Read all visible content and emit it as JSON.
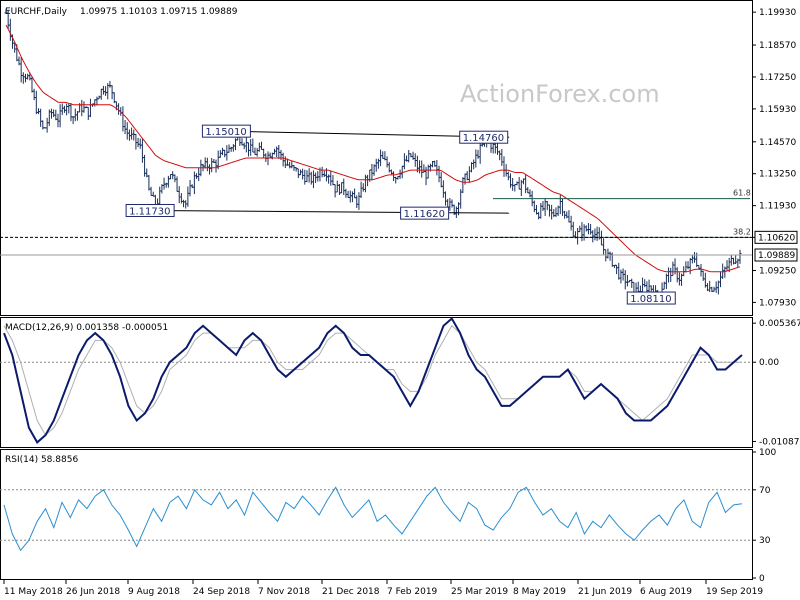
{
  "chart_data": [
    {
      "type": "ohlc",
      "header": "EURCHF,Daily",
      "ohlc_header": "1.09975 1.10103 1.09715 1.09889",
      "watermark": "ActionForex.com",
      "ylim": [
        1.0745,
        1.2035
      ],
      "ticks": [
        "1.19930",
        "1.18570",
        "1.17250",
        "1.15930",
        "1.14570",
        "1.13250",
        "1.11930",
        "1.10620",
        "1.09250",
        "1.07930"
      ],
      "x_ticks": [
        "11 May 2018",
        "26 Jun 2018",
        "9 Aug 2018",
        "24 Sep 2018",
        "7 Nov 2018",
        "21 Dec 2018",
        "7 Feb 2019",
        "25 Mar 2019",
        "8 May 2019",
        "21 Jun 2019",
        "6 Aug 2019",
        "19 Sep 2019"
      ],
      "close_path": [
        1.199,
        1.185,
        1.175,
        1.172,
        1.16,
        1.15,
        1.158,
        1.155,
        1.162,
        1.156,
        1.16,
        1.158,
        1.164,
        1.168,
        1.168,
        1.159,
        1.15,
        1.147,
        1.143,
        1.126,
        1.119,
        1.128,
        1.133,
        1.125,
        1.12,
        1.13,
        1.135,
        1.136,
        1.137,
        1.141,
        1.143,
        1.148,
        1.145,
        1.141,
        1.142,
        1.14,
        1.144,
        1.138,
        1.135,
        1.133,
        1.131,
        1.13,
        1.134,
        1.133,
        1.126,
        1.127,
        1.123,
        1.121,
        1.13,
        1.134,
        1.139,
        1.136,
        1.131,
        1.136,
        1.14,
        1.135,
        1.132,
        1.136,
        1.13,
        1.12,
        1.117,
        1.129,
        1.134,
        1.141,
        1.146,
        1.144,
        1.14,
        1.131,
        1.126,
        1.13,
        1.122,
        1.116,
        1.119,
        1.115,
        1.121,
        1.113,
        1.107,
        1.109,
        1.11,
        1.106,
        1.1,
        1.096,
        1.09,
        1.088,
        1.084,
        1.085,
        1.086,
        1.081,
        1.089,
        1.093,
        1.089,
        1.094,
        1.098,
        1.089,
        1.085,
        1.087,
        1.093,
        1.097,
        1.09889
      ],
      "sma_path": [
        1.194,
        1.188,
        1.181,
        1.175,
        1.17,
        1.166,
        1.164,
        1.162,
        1.162,
        1.161,
        1.161,
        1.161,
        1.161,
        1.161,
        1.161,
        1.159,
        1.156,
        1.152,
        1.148,
        1.144,
        1.14,
        1.138,
        1.137,
        1.136,
        1.135,
        1.135,
        1.135,
        1.135,
        1.135,
        1.136,
        1.137,
        1.138,
        1.139,
        1.139,
        1.139,
        1.139,
        1.139,
        1.139,
        1.138,
        1.137,
        1.136,
        1.135,
        1.134,
        1.134,
        1.133,
        1.132,
        1.131,
        1.13,
        1.13,
        1.13,
        1.131,
        1.132,
        1.132,
        1.133,
        1.134,
        1.134,
        1.134,
        1.134,
        1.134,
        1.132,
        1.13,
        1.129,
        1.129,
        1.13,
        1.132,
        1.133,
        1.134,
        1.134,
        1.133,
        1.133,
        1.131,
        1.129,
        1.127,
        1.125,
        1.124,
        1.122,
        1.12,
        1.118,
        1.116,
        1.114,
        1.111,
        1.108,
        1.105,
        1.102,
        1.099,
        1.097,
        1.095,
        1.093,
        1.092,
        1.092,
        1.092,
        1.092,
        1.093,
        1.093,
        1.092,
        1.092,
        1.092,
        1.093,
        1.094
      ],
      "annotations": [
        {
          "label": "1.15010",
          "x": 0.3,
          "y": 1.1501
        },
        {
          "label": "1.14760",
          "x": 0.644,
          "y": 1.1476
        },
        {
          "label": "1.11730",
          "x": 0.198,
          "y": 1.1173
        },
        {
          "label": "1.11620",
          "x": 0.565,
          "y": 1.1162
        },
        {
          "label": "1.08110",
          "x": 0.868,
          "y": 1.0811
        }
      ],
      "trendlines": [
        {
          "from": [
            0.3,
            1.1501
          ],
          "to": [
            0.678,
            1.1476
          ]
        },
        {
          "from": [
            0.198,
            1.1173
          ],
          "to": [
            0.678,
            1.1162
          ]
        }
      ],
      "fib_levels": [
        {
          "label": "61.8",
          "y": 1.1222
        },
        {
          "label": "38.2",
          "y": 1.1062
        }
      ],
      "resistance_label": "1.10620",
      "last_price_label": "1.09889"
    },
    {
      "type": "line",
      "header": "MACD(12,26,9) 0.001358 -0.000051",
      "ylim": [
        -0.0115,
        0.0058
      ],
      "ticks": [
        {
          "label": "0.005367",
          "v": 0.005367
        },
        {
          "label": "0.00",
          "v": 0.0
        },
        {
          "label": "-0.010875",
          "v": -0.010875
        }
      ],
      "series": [
        {
          "values": [
            0.004,
            0.001,
            -0.004,
            -0.009,
            -0.011,
            -0.01,
            -0.008,
            -0.005,
            -0.002,
            0.001,
            0.003,
            0.004,
            0.003,
            0.001,
            -0.002,
            -0.006,
            -0.008,
            -0.007,
            -0.005,
            -0.002,
            0.0,
            0.001,
            0.002,
            0.004,
            0.005,
            0.004,
            0.003,
            0.002,
            0.001,
            0.003,
            0.004,
            0.003,
            0.001,
            -0.001,
            -0.002,
            -0.001,
            0.0,
            0.001,
            0.002,
            0.004,
            0.005,
            0.004,
            0.002,
            0.001,
            0.001,
            0.0,
            -0.001,
            -0.002,
            -0.004,
            -0.006,
            -0.004,
            -0.001,
            0.002,
            0.005,
            0.006,
            0.004,
            0.001,
            -0.001,
            -0.002,
            -0.004,
            -0.006,
            -0.006,
            -0.005,
            -0.004,
            -0.003,
            -0.002,
            -0.002,
            -0.002,
            -0.001,
            -0.003,
            -0.005,
            -0.004,
            -0.003,
            -0.004,
            -0.005,
            -0.007,
            -0.008,
            -0.008,
            -0.008,
            -0.007,
            -0.006,
            -0.004,
            -0.002,
            0.0,
            0.002,
            0.001,
            -0.001,
            -0.001,
            0.0,
            0.001
          ]
        },
        {
          "values": [
            0.005,
            0.003,
            0.0,
            -0.004,
            -0.008,
            -0.01,
            -0.009,
            -0.007,
            -0.004,
            -0.001,
            0.001,
            0.003,
            0.003,
            0.002,
            0.0,
            -0.003,
            -0.006,
            -0.007,
            -0.006,
            -0.004,
            -0.001,
            0.0,
            0.001,
            0.003,
            0.004,
            0.004,
            0.003,
            0.002,
            0.002,
            0.002,
            0.003,
            0.003,
            0.002,
            0.0,
            -0.001,
            -0.001,
            -0.001,
            0.0,
            0.001,
            0.003,
            0.004,
            0.004,
            0.003,
            0.002,
            0.001,
            0.0,
            -0.001,
            -0.001,
            -0.003,
            -0.004,
            -0.004,
            -0.002,
            0.001,
            0.003,
            0.005,
            0.004,
            0.002,
            0.0,
            -0.001,
            -0.003,
            -0.005,
            -0.005,
            -0.005,
            -0.004,
            -0.003,
            -0.002,
            -0.002,
            -0.002,
            -0.001,
            -0.002,
            -0.004,
            -0.004,
            -0.003,
            -0.004,
            -0.005,
            -0.006,
            -0.007,
            -0.008,
            -0.007,
            -0.006,
            -0.005,
            -0.003,
            -0.001,
            0.001,
            0.001,
            0.001,
            0.0,
            0.0,
            0.0,
            0.0
          ]
        }
      ]
    },
    {
      "type": "line",
      "header": "RSI(14) 58.8856",
      "ylim": [
        0,
        100
      ],
      "ticks": [
        {
          "label": "100",
          "v": 100
        },
        {
          "label": "70",
          "v": 70
        },
        {
          "label": "30",
          "v": 30
        },
        {
          "label": "0",
          "v": 0
        }
      ],
      "series": [
        {
          "values": [
            58,
            35,
            22,
            30,
            45,
            55,
            40,
            60,
            48,
            62,
            55,
            65,
            70,
            58,
            50,
            38,
            25,
            40,
            55,
            45,
            60,
            65,
            55,
            70,
            62,
            58,
            68,
            55,
            62,
            50,
            68,
            60,
            52,
            45,
            60,
            55,
            65,
            58,
            50,
            62,
            72,
            58,
            48,
            55,
            62,
            45,
            50,
            42,
            35,
            45,
            55,
            65,
            72,
            60,
            52,
            45,
            60,
            55,
            42,
            38,
            48,
            55,
            68,
            72,
            60,
            50,
            55,
            45,
            40,
            52,
            35,
            45,
            40,
            50,
            42,
            35,
            30,
            38,
            45,
            50,
            42,
            55,
            62,
            45,
            40,
            60,
            68,
            52,
            58,
            58.8856
          ]
        }
      ]
    }
  ]
}
